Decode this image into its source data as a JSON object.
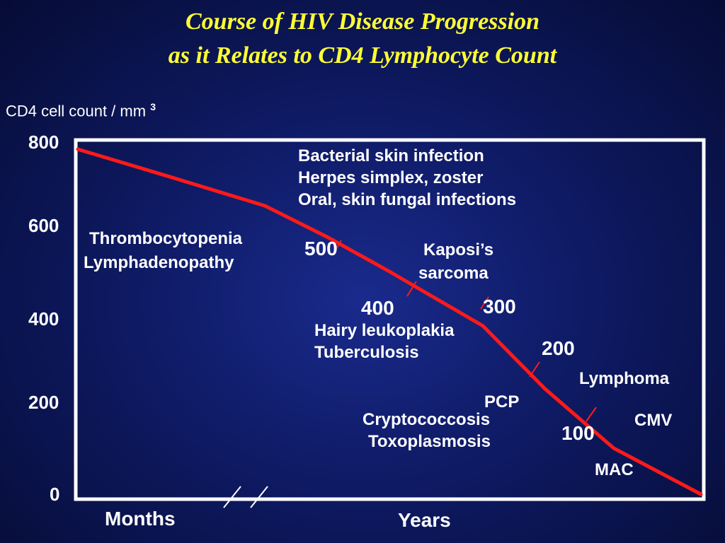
{
  "title_line1": "Course of HIV Disease Progression",
  "title_line2": "as it Relates to CD4 Lymphocyte Count",
  "chart_data": {
    "type": "line",
    "ylabel": "CD4 cell count / mm",
    "ylabel_superscript": "3",
    "xlabel_left": "Months",
    "xlabel_right": "Years",
    "ylim": [
      0,
      800
    ],
    "yticks": [
      "800",
      "600",
      "400",
      "200",
      "0"
    ],
    "ytick_values": [
      800,
      600,
      400,
      200,
      0
    ],
    "series": [
      {
        "points": [
          [
            0,
            787
          ],
          [
            0.15,
            723
          ],
          [
            0.3,
            658
          ],
          [
            0.4,
            587
          ],
          [
            0.5,
            508
          ],
          [
            0.65,
            384
          ],
          [
            0.75,
            240
          ],
          [
            0.86,
            105
          ],
          [
            1.0,
            0
          ]
        ]
      }
    ],
    "markers": [
      {
        "label": "500",
        "value": 500
      },
      {
        "label": "400",
        "value": 400
      },
      {
        "label": "300",
        "value": 300
      },
      {
        "label": "200",
        "value": 200
      },
      {
        "label": "100",
        "value": 100
      }
    ],
    "annotations": {
      "early_1": "Bacterial skin infection",
      "early_2": "Herpes simplex, zoster",
      "early_3": "Oral, skin fungal infections",
      "thrombocytopenia": "Thrombocytopenia",
      "lymphadenopathy": "Lymphadenopathy",
      "kaposi_1": "Kaposi’s",
      "kaposi_2": "sarcoma",
      "hairy": "Hairy leukoplakia",
      "tb": "Tuberculosis",
      "lymphoma": "Lymphoma",
      "pcp": "PCP",
      "crypto": "Cryptococcosis",
      "toxo": "Toxoplasmosis",
      "cmv": "CMV",
      "mac": "MAC"
    },
    "grid": false,
    "legend": "none",
    "colors": {
      "line": "#ff1a1a",
      "axes": "#ffffff",
      "title": "#ffff33",
      "text": "#ffffff"
    }
  }
}
